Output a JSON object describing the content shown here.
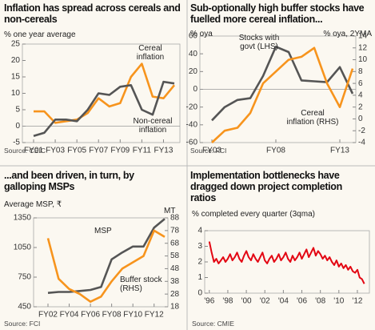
{
  "chart_data": [
    {
      "type": "line",
      "title": "Inflation has spread across cereals and non-cereals",
      "ylabel": "% one year average",
      "source": "Source: CEIC",
      "categories": [
        "FY01",
        null,
        "FY03",
        null,
        "FY05",
        null,
        "FY07",
        null,
        "FY09",
        null,
        "FY11",
        null,
        "FY13",
        null
      ],
      "ylim": [
        -5,
        25
      ],
      "yticks": [
        -5,
        0,
        5,
        10,
        15,
        20,
        25
      ],
      "grid": false,
      "series": [
        {
          "name": "Cereal inflation",
          "color": "#f7941d",
          "values": [
            4.5,
            4.5,
            1,
            1.5,
            2,
            4,
            8.5,
            6,
            7,
            15,
            19,
            9,
            8.5,
            12.5
          ]
        },
        {
          "name": "Non-cereal inflation",
          "color": "#555555",
          "values": [
            -3,
            -2,
            2,
            2,
            1.5,
            5,
            10,
            9.5,
            12,
            12.5,
            5,
            3.5,
            13.5,
            13
          ]
        }
      ]
    },
    {
      "type": "line",
      "title": "Sub-optionally high buffer stocks have fuelled more cereal inflation...",
      "ylabel": "% oya",
      "y2label": "% oya, 2YMA",
      "source": "Source: FCI",
      "categories": [
        "FY03",
        null,
        null,
        null,
        null,
        "FY08",
        null,
        null,
        null,
        null,
        "FY13",
        null
      ],
      "ylim": [
        -60,
        60
      ],
      "yticks": [
        -60,
        -40,
        -20,
        0,
        20,
        40,
        60
      ],
      "y2lim": [
        -4,
        14
      ],
      "y2ticks": [
        -4,
        -2,
        0,
        2,
        4,
        6,
        8,
        10,
        12,
        14
      ],
      "grid": false,
      "series": [
        {
          "name": "Stocks with govt (LHS)",
          "color": "#555555",
          "values": [
            -35,
            -20,
            -12,
            -10,
            15,
            48,
            42,
            10,
            9,
            8,
            25,
            -5
          ]
        },
        {
          "name": "Cereal inflation (RHS)",
          "color": "#f7941d",
          "axis": "y2",
          "values": [
            -4,
            -2,
            -1.5,
            1,
            6,
            8,
            10,
            10.5,
            12,
            6,
            2,
            8.5
          ]
        }
      ]
    },
    {
      "type": "line",
      "title": "...and been driven, in turn, by galloping MSPs",
      "ylabel": "Average MSP, ₹",
      "y2label": "MT",
      "source": "Source: FCI",
      "categories": [
        "FY02",
        null,
        "FY04",
        null,
        "FY06",
        null,
        "FY08",
        null,
        "FY10",
        null,
        "FY12",
        null
      ],
      "ylim": [
        450,
        1350
      ],
      "yticks": [
        450,
        750,
        1050,
        1350
      ],
      "y2lim": [
        18,
        88
      ],
      "y2ticks": [
        18,
        28,
        38,
        48,
        58,
        68,
        78,
        88
      ],
      "grid": false,
      "series": [
        {
          "name": "MSP",
          "color": "#555555",
          "values": [
            590,
            600,
            600,
            610,
            620,
            650,
            930,
            1000,
            1060,
            1060,
            1250,
            1340
          ]
        },
        {
          "name": "Buffer stock (RHS)",
          "color": "#f7941d",
          "axis": "y2",
          "values": [
            72,
            40,
            32,
            28,
            22,
            26,
            38,
            48,
            53,
            58,
            78,
            73
          ]
        }
      ]
    },
    {
      "type": "line",
      "title": "Implementation bottlenecks have dragged down project completion ratios",
      "ylabel": "% completed every quarter (3qma)",
      "source": "Source: CMIE",
      "xlim": [
        1995.5,
        2013.3
      ],
      "xticks": [
        {
          "value": 1996,
          "label": "'96"
        },
        {
          "value": 1998,
          "label": "'98"
        },
        {
          "value": 2000,
          "label": "'00"
        },
        {
          "value": 2002,
          "label": "'02"
        },
        {
          "value": 2004,
          "label": "'04"
        },
        {
          "value": 2006,
          "label": "'06"
        },
        {
          "value": 2008,
          "label": "'08"
        },
        {
          "value": 2010,
          "label": "'10"
        },
        {
          "value": 2012,
          "label": "'12"
        }
      ],
      "ylim": [
        0,
        4
      ],
      "yticks": [
        0,
        1,
        2,
        3,
        4
      ],
      "grid": false,
      "x": [
        1996,
        1996.25,
        1996.5,
        1996.75,
        1997,
        1997.25,
        1997.5,
        1997.75,
        1998,
        1998.25,
        1998.5,
        1998.75,
        1999,
        1999.25,
        1999.5,
        1999.75,
        2000,
        2000.25,
        2000.5,
        2000.75,
        2001,
        2001.25,
        2001.5,
        2001.75,
        2002,
        2002.25,
        2002.5,
        2002.75,
        2003,
        2003.25,
        2003.5,
        2003.75,
        2004,
        2004.25,
        2004.5,
        2004.75,
        2005,
        2005.25,
        2005.5,
        2005.75,
        2006,
        2006.25,
        2006.5,
        2006.75,
        2007,
        2007.25,
        2007.5,
        2007.75,
        2008,
        2008.25,
        2008.5,
        2008.75,
        2009,
        2009.25,
        2009.5,
        2009.75,
        2010,
        2010.25,
        2010.5,
        2010.75,
        2011,
        2011.25,
        2011.5,
        2011.75,
        2012,
        2012.25,
        2012.5,
        2012.75
      ],
      "series": [
        {
          "name": null,
          "color": "#e30613",
          "values": [
            3.3,
            2.6,
            2.0,
            2.2,
            1.9,
            2.1,
            2.3,
            2.0,
            2.2,
            2.5,
            2.1,
            2.3,
            2.6,
            2.2,
            2.0,
            2.4,
            2.7,
            2.3,
            2.1,
            2.5,
            2.2,
            2.0,
            2.3,
            2.6,
            2.1,
            1.9,
            2.2,
            2.4,
            2.0,
            2.2,
            2.5,
            2.1,
            2.3,
            2.6,
            2.2,
            2.0,
            2.4,
            2.1,
            2.3,
            2.6,
            2.2,
            2.5,
            2.8,
            2.3,
            2.6,
            2.9,
            2.4,
            2.7,
            2.5,
            2.2,
            2.4,
            2.1,
            2.3,
            2.0,
            1.8,
            2.1,
            1.7,
            1.9,
            1.6,
            1.8,
            1.5,
            1.7,
            1.4,
            1.3,
            1.5,
            1.0,
            0.9,
            0.6
          ]
        }
      ]
    }
  ]
}
